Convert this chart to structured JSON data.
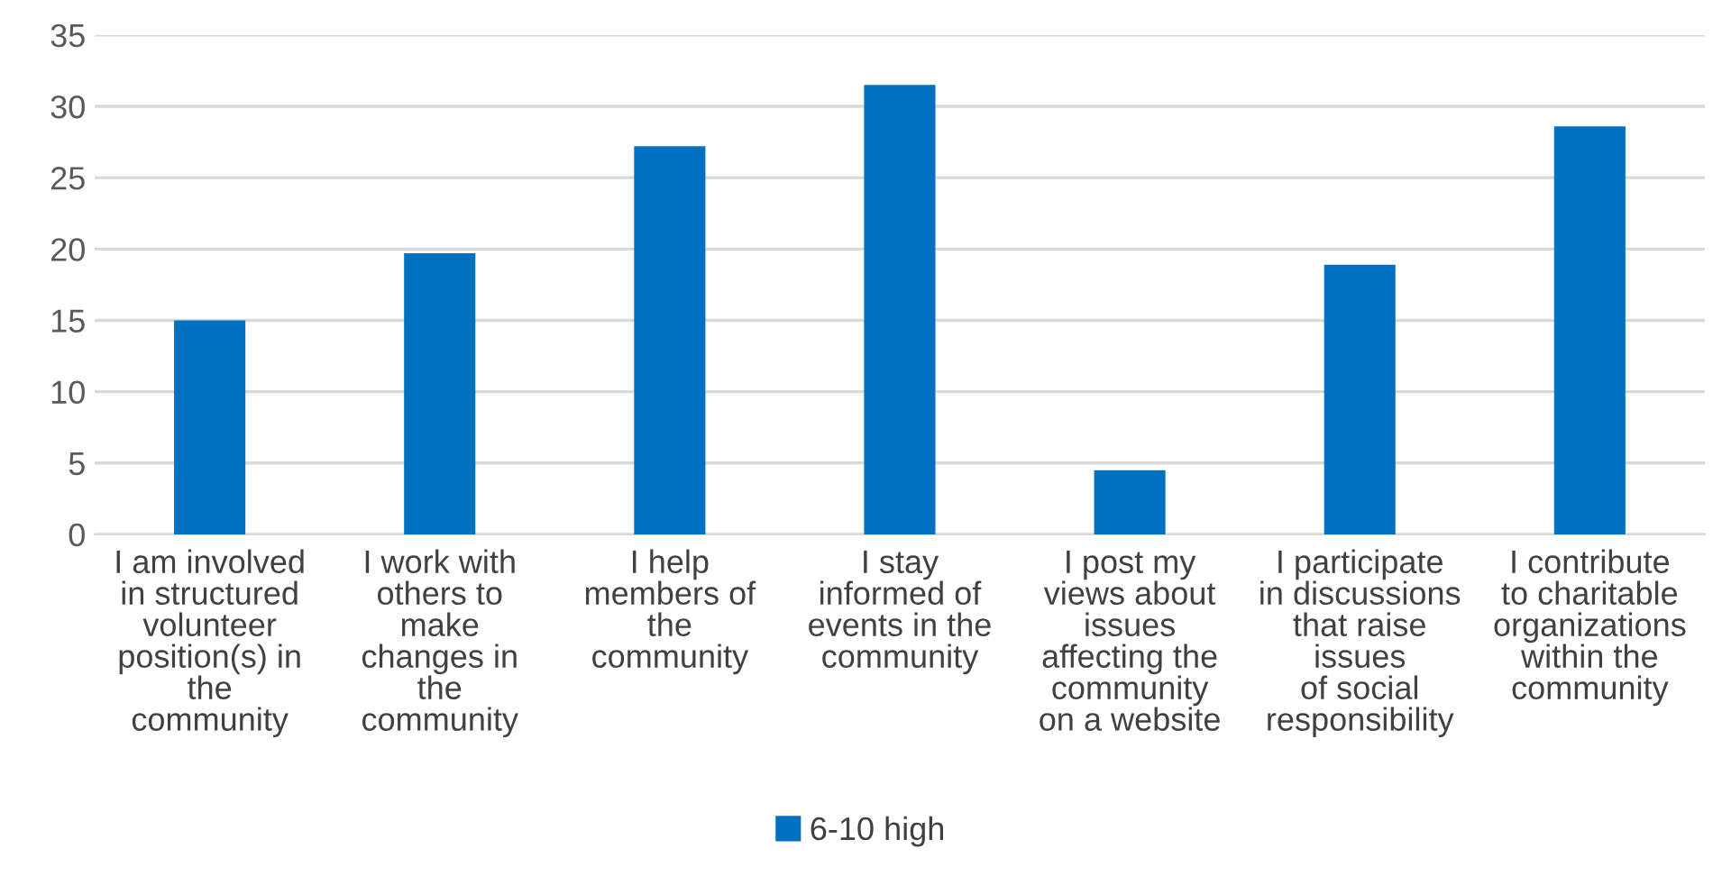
{
  "chart_data": {
    "type": "bar",
    "categories": [
      "I am involved\nin structured\nvolunteer\nposition(s) in\nthe\ncommunity",
      "I work with\nothers to\nmake\nchanges in\nthe\ncommunity",
      "I help\nmembers of\nthe\ncommunity",
      "I stay\ninformed of\nevents in the\ncommunity",
      "I post my\nviews about\nissues\naffecting the\ncommunity\non a website",
      "I participate\nin discussions\nthat raise\nissues\nof social\nresponsibility",
      "I contribute\nto charitable\norganizations\nwithin the\ncommunity"
    ],
    "series": [
      {
        "name": "6-10 high",
        "color": "#0070c0",
        "values": [
          15.0,
          19.7,
          27.2,
          31.5,
          4.5,
          18.9,
          28.6
        ]
      }
    ],
    "ylim": [
      0,
      35
    ],
    "yticks": [
      0,
      5,
      10,
      15,
      20,
      25,
      30,
      35
    ],
    "grid": "y",
    "legend": "bottom"
  }
}
